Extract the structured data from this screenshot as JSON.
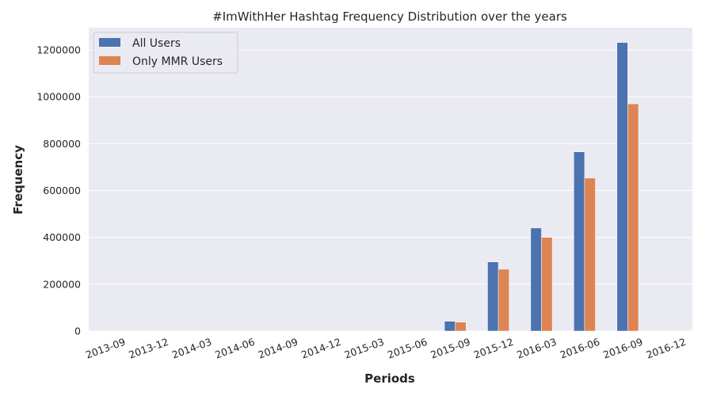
{
  "chart_data": {
    "type": "bar",
    "title": "#ImWithHer Hashtag Frequency Distribution over the years",
    "xlabel": "Periods",
    "ylabel": "Frequency",
    "categories": [
      "2013-09",
      "2013-12",
      "2014-03",
      "2014-06",
      "2014-09",
      "2014-12",
      "2015-03",
      "2015-06",
      "2015-09",
      "2015-12",
      "2016-03",
      "2016-06",
      "2016-09",
      "2016-12"
    ],
    "series": [
      {
        "name": "All Users",
        "color": "#4c72b0",
        "values": [
          0,
          0,
          0,
          0,
          0,
          0,
          0,
          0,
          42000,
          295000,
          440000,
          765000,
          1232000,
          0
        ]
      },
      {
        "name": "Only MMR Users",
        "color": "#dd8452",
        "values": [
          0,
          0,
          0,
          0,
          0,
          0,
          0,
          0,
          38000,
          264000,
          400000,
          653000,
          970000,
          0
        ]
      }
    ],
    "ylim": [
      0,
      1295000
    ],
    "yticks": [
      "0",
      "200000",
      "400000",
      "600000",
      "800000",
      "1000000",
      "1200000"
    ],
    "ytick_values": [
      0,
      200000,
      400000,
      600000,
      800000,
      1000000,
      1200000
    ],
    "grid": true,
    "legend_position": "top-left",
    "background": "#eaeaf2"
  }
}
